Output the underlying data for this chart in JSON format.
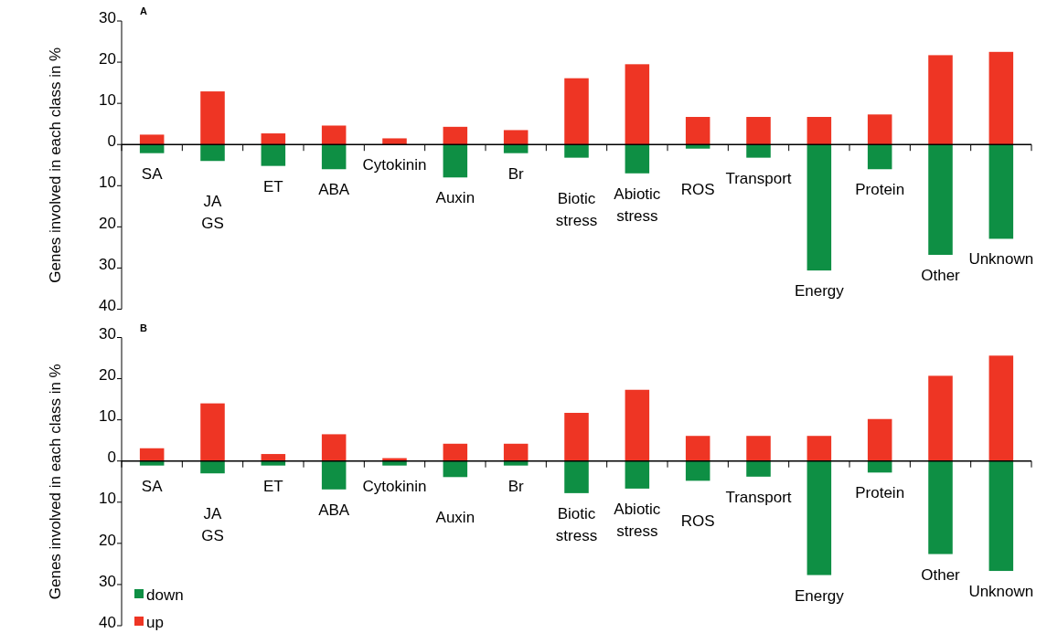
{
  "chart_data": [
    {
      "type": "bar",
      "title": "A",
      "ylabel": "Genes involved in each class in %",
      "categories": [
        "SA",
        "JA\nGS",
        "ET",
        "ABA",
        "Cytokinin",
        "Auxin",
        "Br",
        "Biotic\nstress",
        "Abiotic\nstress",
        "ROS",
        "Transport",
        "Energy",
        "Protein",
        "Other",
        "Unknown"
      ],
      "stacked": true,
      "legend": false,
      "ylim": [
        -40,
        30
      ],
      "yticks": [
        30,
        20,
        10,
        0,
        {
          "value": -10,
          "label": "10"
        },
        {
          "value": -20,
          "label": "20"
        },
        {
          "value": -30,
          "label": "30"
        },
        {
          "value": -40,
          "label": "40"
        }
      ],
      "series": [
        {
          "color": "#0e8f44",
          "values": [
            -2.1,
            -4,
            -5.2,
            -6,
            0,
            -8,
            -2.1,
            -3.2,
            -7,
            -1,
            -3.2,
            -30.6,
            -6,
            -26.8,
            -22.9
          ]
        },
        {
          "color": "#ee3524",
          "values": [
            2.4,
            12.9,
            2.7,
            4.6,
            1.5,
            4.3,
            3.5,
            16.1,
            19.5,
            6.7,
            6.7,
            6.7,
            7.3,
            21.7,
            22.5
          ]
        }
      ]
    },
    {
      "type": "bar",
      "title": "B",
      "ylabel": "Genes involved in each class in %",
      "categories": [
        "SA",
        "JA\nGS",
        "ET",
        "ABA",
        "Cytokinin",
        "Auxin",
        "Br",
        "Biotic\nstress",
        "Abiotic\nstress",
        "ROS",
        "Transport",
        "Energy",
        "Protein",
        "Other",
        "Unknown"
      ],
      "stacked": true,
      "legend": "bottom left",
      "ylim": [
        -40,
        30
      ],
      "yticks": [
        30,
        20,
        10,
        0,
        {
          "value": -10,
          "label": "10"
        },
        {
          "value": -20,
          "label": "20"
        },
        {
          "value": -30,
          "label": "30"
        },
        {
          "value": -40,
          "label": "40"
        }
      ],
      "series": [
        {
          "name": "down",
          "color": "#0e8f44",
          "values": [
            -1.1,
            -3,
            -1.1,
            -6.9,
            -1.1,
            -3.9,
            -1.1,
            -7.8,
            -6.7,
            -4.8,
            -3.8,
            -27.7,
            -2.8,
            -22.6,
            -26.7
          ]
        },
        {
          "name": "up",
          "color": "#ee3524",
          "values": [
            3.1,
            14,
            1.7,
            6.5,
            0.7,
            4.2,
            4.2,
            11.7,
            17.3,
            6.1,
            6.1,
            6.1,
            10.2,
            20.7,
            25.6
          ]
        }
      ]
    }
  ]
}
